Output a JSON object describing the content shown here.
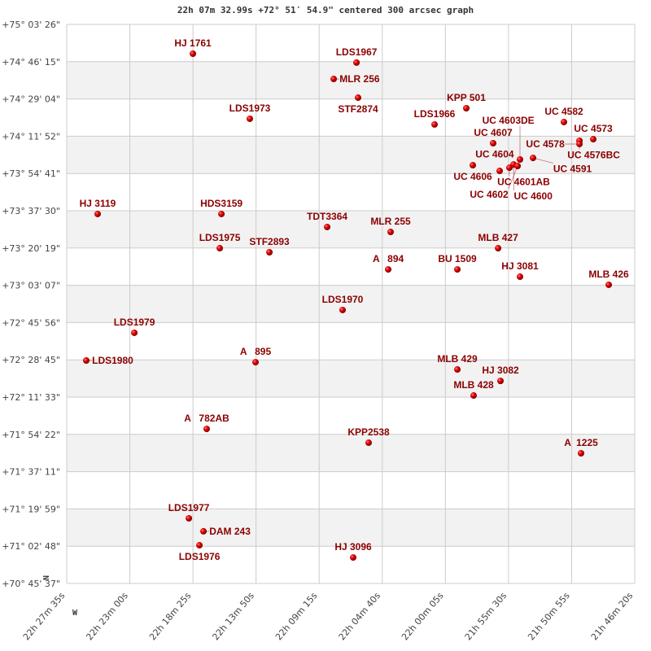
{
  "title": "22h 07m 32.99s +72° 51′ 54.9\" centered 300 arcsec graph",
  "chart_data": {
    "type": "scatter",
    "title": "22h 07m 32.99s +72° 51′ 54.9\" centered 300 arcsec graph",
    "xlabel": "",
    "ylabel": "",
    "x_units": "RA (hours, decreasing to the right)",
    "y_units": "Dec (degrees)",
    "xlim": [
      22.45972,
      21.77222
    ],
    "ylim": [
      70.76028,
      75.05722
    ],
    "grid": true,
    "x_tick_labels": [
      "22h 27m 35s",
      "22h 23m 00s",
      "22h 18m 25s",
      "22h 13m 50s",
      "22h 09m 15s",
      "22h 04m 40s",
      "22h 00m 05s",
      "21h 55m 30s",
      "21h 50m 55s",
      "21h 46m 20s"
    ],
    "y_tick_labels": [
      "+75° 03' 26\"",
      "+74° 46' 15\"",
      "+74° 29' 04\"",
      "+74° 11' 52\"",
      "+73° 54' 41\"",
      "+73° 37' 30\"",
      "+73° 20' 19\"",
      "+73° 03' 07\"",
      "+72° 45' 56\"",
      "+72° 28' 45\"",
      "+72° 11' 33\"",
      "+71° 54' 22\"",
      "+71° 37' 11\"",
      "+71° 19' 59\"",
      "+71° 02' 48\"",
      "+70° 45' 37\""
    ],
    "direction_labels": {
      "north": "N",
      "west": "W"
    },
    "colors": {
      "point": "#cc0000",
      "label": "#8b0000",
      "band": "#f2f2f2",
      "grid": "#cccccc"
    },
    "points": [
      {
        "name": "HJ 1761",
        "ra": 22.307,
        "dec": 74.832
      },
      {
        "name": "LDS1967",
        "ra": 22.109,
        "dec": 74.764
      },
      {
        "name": "MLR 256",
        "ra": 22.1366,
        "dec": 74.638
      },
      {
        "name": "STF2874",
        "ra": 22.1071,
        "dec": 74.494
      },
      {
        "name": "LDS1973",
        "ra": 22.2381,
        "dec": 74.332
      },
      {
        "name": "KPP 501",
        "ra": 21.9761,
        "dec": 74.413
      },
      {
        "name": "LDS1966",
        "ra": 22.0145,
        "dec": 74.288
      },
      {
        "name": "UC 4582",
        "ra": 21.8579,
        "dec": 74.307
      },
      {
        "name": "UC 4573",
        "ra": 21.8224,
        "dec": 74.175
      },
      {
        "name": "UC 4576BC",
        "ra": 21.8391,
        "dec": 74.163
      },
      {
        "name": "UC 4578",
        "ra": 21.8391,
        "dec": 74.138
      },
      {
        "name": "UC 4607",
        "ra": 21.9436,
        "dec": 74.144
      },
      {
        "name": "UC 4601AB",
        "ra": 21.9239,
        "dec": 73.956
      },
      {
        "name": "UC 4604",
        "ra": 21.9357,
        "dec": 73.931
      },
      {
        "name": "UC 4606",
        "ra": 21.9682,
        "dec": 73.975
      },
      {
        "name": "UC 4591",
        "ra": 21.8953,
        "dec": 74.031
      },
      {
        "name": "UC 4600",
        "ra": 21.9189,
        "dec": 73.981
      },
      {
        "name": "UC 4602",
        "ra": 21.914,
        "dec": 73.969
      },
      {
        "name": "UC 4603DE",
        "ra": 21.9111,
        "dec": 74.019
      },
      {
        "name": "HJ 3119",
        "ra": 22.4223,
        "dec": 73.6
      },
      {
        "name": "HDS3159",
        "ra": 22.2725,
        "dec": 73.6
      },
      {
        "name": "TDT3364",
        "ra": 22.1445,
        "dec": 73.5
      },
      {
        "name": "MLR 255",
        "ra": 22.0677,
        "dec": 73.462
      },
      {
        "name": "LDS1975",
        "ra": 22.2745,
        "dec": 73.337
      },
      {
        "name": "STF2893",
        "ra": 22.2144,
        "dec": 73.306
      },
      {
        "name": "MLB 427",
        "ra": 21.9376,
        "dec": 73.337
      },
      {
        "name": "A   894",
        "ra": 22.0706,
        "dec": 73.174
      },
      {
        "name": "BU 1509",
        "ra": 21.9869,
        "dec": 73.174
      },
      {
        "name": "HJ 3081",
        "ra": 21.9111,
        "dec": 73.118
      },
      {
        "name": "MLB 426",
        "ra": 21.8037,
        "dec": 73.056
      },
      {
        "name": "LDS1970",
        "ra": 22.1258,
        "dec": 72.862
      },
      {
        "name": "LDS1979",
        "ra": 22.3779,
        "dec": 72.687
      },
      {
        "name": "LDS1980",
        "ra": 22.4361,
        "dec": 72.474
      },
      {
        "name": "A   895",
        "ra": 22.2312,
        "dec": 72.461
      },
      {
        "name": "MLB 429",
        "ra": 21.9869,
        "dec": 72.405
      },
      {
        "name": "HJ 3082",
        "ra": 21.9347,
        "dec": 72.317
      },
      {
        "name": "MLB 428",
        "ra": 21.9672,
        "dec": 72.205
      },
      {
        "name": "A   782AB",
        "ra": 22.2903,
        "dec": 71.948
      },
      {
        "name": "KPP2538",
        "ra": 22.0943,
        "dec": 71.842
      },
      {
        "name": "A  1225",
        "ra": 21.8372,
        "dec": 71.761
      },
      {
        "name": "LDS1977",
        "ra": 22.3119,
        "dec": 71.261
      },
      {
        "name": "DAM 243",
        "ra": 22.2942,
        "dec": 71.161
      },
      {
        "name": "LDS1976",
        "ra": 22.2991,
        "dec": 71.054
      },
      {
        "name": "HJ 3096",
        "ra": 22.113,
        "dec": 70.96
      }
    ]
  }
}
